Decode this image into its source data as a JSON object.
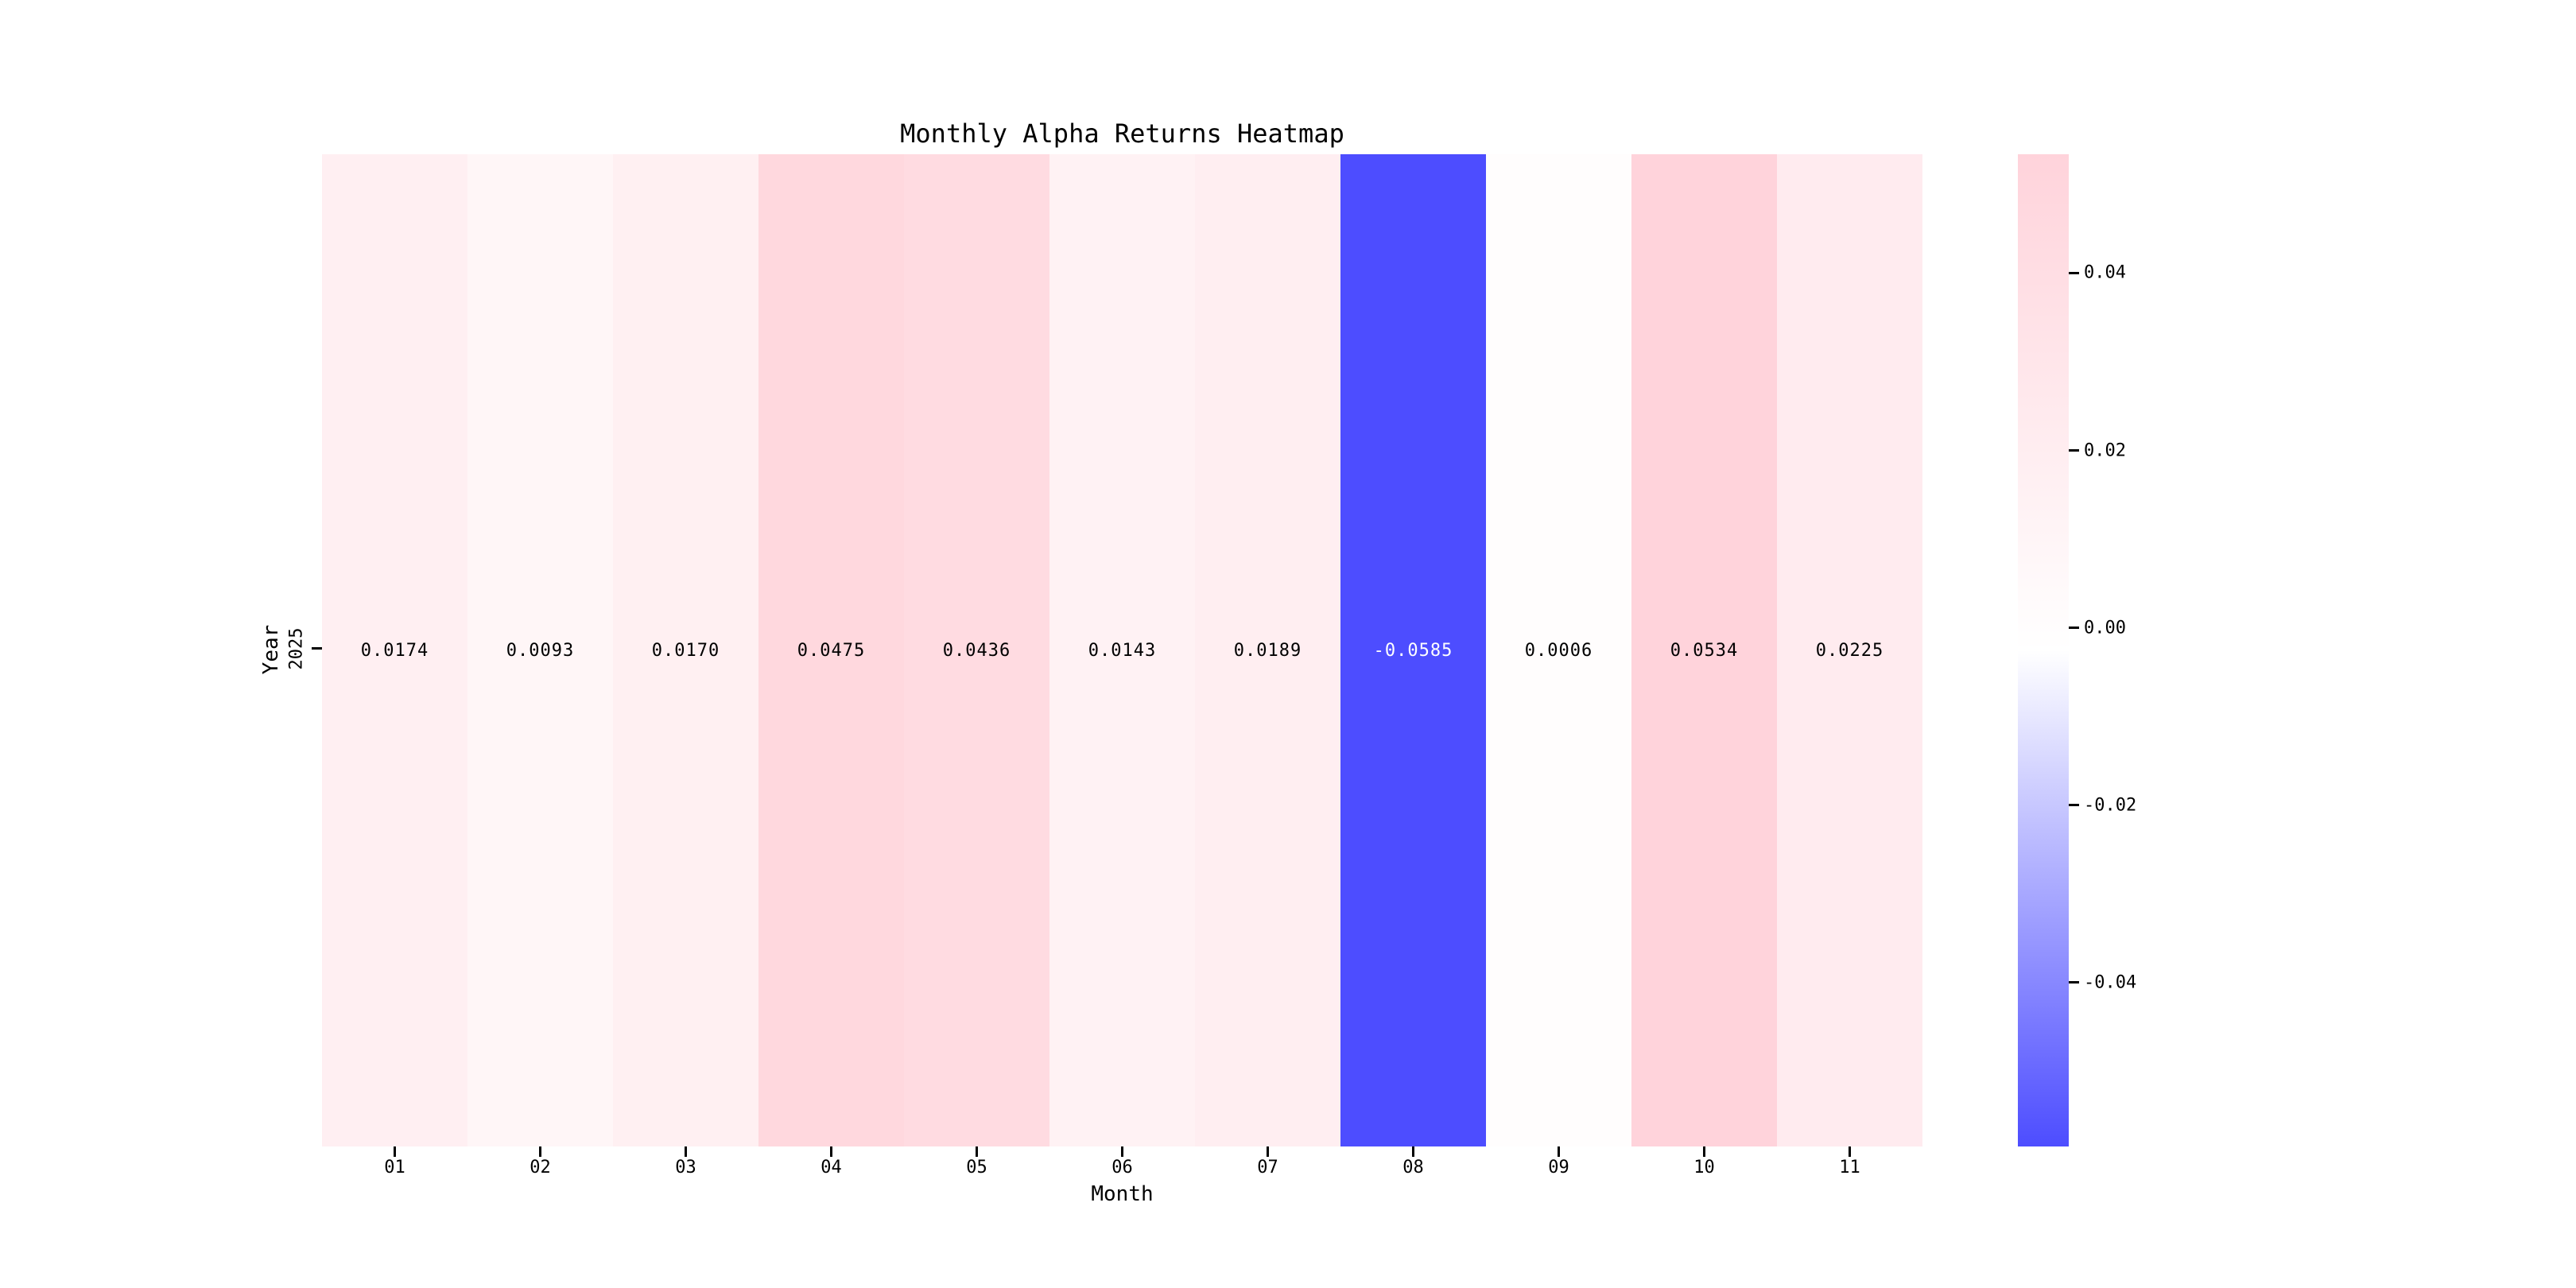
{
  "chart_data": {
    "type": "heatmap",
    "title": "Monthly Alpha Returns Heatmap",
    "xlabel": "Month",
    "ylabel": "Year",
    "rows": [
      "2025"
    ],
    "columns": [
      "01",
      "02",
      "03",
      "04",
      "05",
      "06",
      "07",
      "08",
      "09",
      "10",
      "11"
    ],
    "values": [
      [
        0.0174,
        0.0093,
        0.017,
        0.0475,
        0.0436,
        0.0143,
        0.0189,
        -0.0585,
        0.0006,
        0.0534,
        0.0225
      ]
    ],
    "cell_labels": [
      [
        "0.0174",
        "0.0093",
        "0.0170",
        "0.0475",
        "0.0436",
        "0.0143",
        "0.0189",
        "-0.0585",
        "0.0006",
        "0.0534",
        "0.0225"
      ]
    ],
    "vmin": -0.0585,
    "vmax": 0.0534,
    "grid": false,
    "legend_position": "right-colorbar",
    "colorbar_ticks": [
      {
        "label": "0.04",
        "value": 0.04
      },
      {
        "label": "0.02",
        "value": 0.02
      },
      {
        "label": "0.00",
        "value": 0.0
      },
      {
        "label": "-0.02",
        "value": -0.02
      },
      {
        "label": "-0.04",
        "value": -0.04
      }
    ],
    "colormap": {
      "negative_end": "#0000ff",
      "center": "#ffffff",
      "positive_end": "#ffc0cb",
      "alpha": 0.7,
      "rendered_negative_end": "#4d4dff",
      "rendered_positive_end": "#ffd3db"
    },
    "colors": {
      "background": "#ffffff",
      "text": "#000000",
      "annotation_dark": "#000000",
      "annotation_light": "#ffffff"
    }
  }
}
